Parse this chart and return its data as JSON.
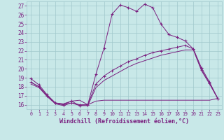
{
  "background_color": "#c8e8e8",
  "grid_color": "#a0c8cc",
  "line_color": "#7a2080",
  "xlabel": "Windchill (Refroidissement éolien,°C)",
  "xlim": [
    -0.5,
    23.5
  ],
  "ylim": [
    15.5,
    27.5
  ],
  "yticks": [
    16,
    17,
    18,
    19,
    20,
    21,
    22,
    23,
    24,
    25,
    26,
    27
  ],
  "xticks": [
    0,
    1,
    2,
    3,
    4,
    5,
    6,
    7,
    8,
    9,
    10,
    11,
    12,
    13,
    14,
    15,
    16,
    17,
    18,
    19,
    20,
    21,
    22,
    23
  ],
  "curve1_x": [
    0,
    1,
    2,
    3,
    4,
    5,
    6,
    7,
    8,
    9,
    10,
    11,
    12,
    13,
    14,
    15,
    16,
    17,
    18,
    19,
    20,
    21,
    22,
    23
  ],
  "curve1_y": [
    18.9,
    18.2,
    17.1,
    16.2,
    16.0,
    16.4,
    15.9,
    16.0,
    19.4,
    22.3,
    26.1,
    27.1,
    26.8,
    26.4,
    27.2,
    26.8,
    25.0,
    23.8,
    23.5,
    23.1,
    22.2,
    20.1,
    18.5,
    16.7
  ],
  "curve2_x": [
    0,
    1,
    2,
    3,
    4,
    5,
    6,
    7,
    8,
    9,
    10,
    11,
    12,
    13,
    14,
    15,
    16,
    17,
    18,
    19,
    20,
    21,
    22,
    23
  ],
  "curve2_y": [
    18.5,
    18.0,
    17.0,
    16.2,
    16.0,
    16.2,
    16.0,
    16.0,
    18.3,
    19.2,
    19.8,
    20.3,
    20.8,
    21.1,
    21.5,
    21.8,
    22.0,
    22.2,
    22.4,
    22.6,
    22.2,
    19.9,
    18.4,
    16.7
  ],
  "curve3_x": [
    0,
    1,
    2,
    3,
    4,
    5,
    6,
    7,
    8,
    9,
    10,
    11,
    12,
    13,
    14,
    15,
    16,
    17,
    18,
    19,
    20,
    21,
    22,
    23
  ],
  "curve3_y": [
    18.3,
    17.9,
    16.9,
    16.1,
    15.9,
    16.2,
    15.9,
    15.9,
    17.9,
    18.7,
    19.2,
    19.7,
    20.2,
    20.6,
    20.9,
    21.2,
    21.5,
    21.7,
    21.9,
    22.1,
    22.1,
    19.8,
    18.3,
    16.7
  ],
  "curve4_x": [
    0,
    1,
    2,
    3,
    4,
    5,
    6,
    7,
    8,
    9,
    10,
    11,
    12,
    13,
    14,
    15,
    16,
    17,
    18,
    19,
    20,
    21,
    22,
    23
  ],
  "curve4_y": [
    18.5,
    18.0,
    17.0,
    16.2,
    16.1,
    16.4,
    16.5,
    16.0,
    16.4,
    16.5,
    16.5,
    16.5,
    16.5,
    16.5,
    16.5,
    16.5,
    16.5,
    16.5,
    16.5,
    16.5,
    16.5,
    16.5,
    16.5,
    16.7
  ]
}
